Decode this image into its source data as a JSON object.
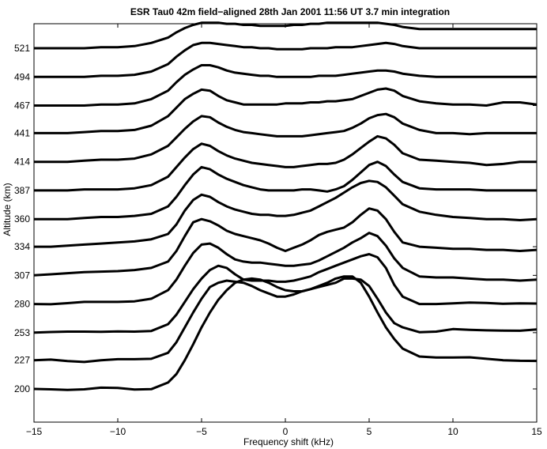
{
  "chart_data": {
    "type": "line",
    "title": "ESR Tau0 42m field−aligned 28th Jan 2001 11:56 UT 3.7 min integration",
    "xlabel": "Frequency shift (kHz)",
    "ylabel": "Altitude (km)",
    "xlim": [
      -15,
      15
    ],
    "xticks": [
      -15,
      -10,
      -5,
      0,
      5,
      10,
      15
    ],
    "xtick_labels": [
      "−15",
      "−10",
      "−5",
      "0",
      "5",
      "10",
      "15"
    ],
    "altitude_labels": [
      "200",
      "227",
      "253",
      "280",
      "307",
      "334",
      "360",
      "387",
      "414",
      "441",
      "467",
      "494",
      "521"
    ],
    "grid": false,
    "line_color": "#000000",
    "x": [
      -15,
      -14,
      -13,
      -12,
      -11,
      -10,
      -9,
      -8,
      -7,
      -6.5,
      -6,
      -5.5,
      -5,
      -4.5,
      -4,
      -3.5,
      -3,
      -2.5,
      -2,
      -1.5,
      -1,
      -0.5,
      0,
      0.5,
      1,
      1.5,
      2,
      2.5,
      3,
      3.5,
      4,
      4.5,
      5,
      5.5,
      6,
      6.5,
      7,
      8,
      9,
      10,
      11,
      12,
      13,
      14,
      15
    ],
    "series": [
      {
        "altitude": "200",
        "values": [
          200.0,
          199.6,
          199.0,
          199.6,
          201.2,
          201.0,
          199.4,
          199.8,
          206.0,
          214.0,
          227.0,
          242.0,
          258.0,
          272.0,
          284.0,
          293.0,
          300.0,
          303.0,
          304.0,
          303.0,
          300.0,
          296.0,
          293.0,
          292.0,
          292.0,
          294.0,
          297.0,
          300.0,
          304.0,
          306.0,
          306.0,
          300.0,
          287.0,
          272.0,
          258.0,
          247.0,
          238.0,
          230.5,
          229.6,
          229.6,
          229.8,
          228.4,
          227.0,
          226.5,
          226.4
        ]
      },
      {
        "altitude": "227",
        "values": [
          227.0,
          227.6,
          226.2,
          225.4,
          227.0,
          228.0,
          228.0,
          228.4,
          234.0,
          244.0,
          258.0,
          272.0,
          285.0,
          296.0,
          300.0,
          302.0,
          301.0,
          300.0,
          297.0,
          293.0,
          290.0,
          287.0,
          287.0,
          289.0,
          292.0,
          294.0,
          296.0,
          298.0,
          300.0,
          304.0,
          304.0,
          303.0,
          297.0,
          285.0,
          272.0,
          262.0,
          258.0,
          253.5,
          254.0,
          256.4,
          255.6,
          255.2,
          255.0,
          254.8,
          256.0
        ]
      },
      {
        "altitude": "253",
        "values": [
          253.0,
          253.6,
          254.0,
          254.0,
          253.8,
          254.2,
          254.0,
          254.6,
          261.0,
          270.0,
          282.0,
          294.0,
          304.0,
          312.0,
          316.0,
          314.0,
          308.0,
          303.0,
          302.0,
          302.0,
          302.0,
          301.0,
          301.0,
          302.0,
          304.0,
          306.0,
          310.0,
          313.0,
          316.0,
          319.0,
          322.0,
          325.0,
          327.0,
          324.0,
          314.0,
          298.0,
          287.0,
          280.0,
          280.0,
          280.6,
          281.4,
          281.0,
          280.2,
          280.6,
          280.4
        ]
      },
      {
        "altitude": "280",
        "values": [
          280.0,
          279.8,
          280.8,
          282.0,
          282.0,
          282.0,
          282.5,
          285.0,
          293.0,
          303.0,
          316.0,
          328.0,
          336.0,
          337.0,
          333.0,
          327.0,
          322.0,
          320.0,
          319.0,
          319.0,
          318.0,
          317.0,
          316.0,
          316.0,
          317.0,
          318.0,
          321.0,
          325.0,
          329.0,
          333.0,
          338.0,
          342.0,
          347.0,
          344.0,
          335.0,
          323.0,
          314.0,
          306.0,
          305.0,
          305.0,
          304.0,
          303.0,
          303.0,
          302.0,
          303.0
        ]
      },
      {
        "altitude": "307",
        "values": [
          307.0,
          308.0,
          309.0,
          310.0,
          310.5,
          311.0,
          312.0,
          314.0,
          320.0,
          330.0,
          344.0,
          357.0,
          360.0,
          358.0,
          354.0,
          349.0,
          346.0,
          344.0,
          342.0,
          340.0,
          337.0,
          333.0,
          330.0,
          333.0,
          336.0,
          340.0,
          345.0,
          348.0,
          350.0,
          352.0,
          357.0,
          364.0,
          370.0,
          368.0,
          360.0,
          348.0,
          338.0,
          334.0,
          333.0,
          332.0,
          332.0,
          331.0,
          331.0,
          330.0,
          331.0
        ]
      },
      {
        "altitude": "334",
        "values": [
          334.0,
          334.0,
          335.0,
          336.0,
          337.0,
          338.0,
          339.0,
          341.0,
          346.0,
          355.0,
          368.0,
          378.0,
          383.0,
          381.0,
          376.0,
          372.0,
          369.0,
          367.0,
          365.0,
          364.0,
          364.0,
          363.0,
          363.0,
          364.0,
          366.0,
          368.0,
          372.0,
          376.0,
          380.0,
          385.0,
          390.0,
          394.0,
          396.0,
          395.0,
          390.0,
          382.0,
          374.0,
          367.0,
          364.0,
          362.0,
          361.0,
          360.0,
          360.0,
          359.0,
          360.0
        ]
      },
      {
        "altitude": "360",
        "values": [
          360.0,
          360.0,
          360.0,
          361.0,
          362.0,
          362.0,
          363.0,
          365.0,
          372.0,
          381.0,
          392.0,
          402.0,
          409.0,
          407.0,
          402.0,
          398.0,
          395.0,
          392.0,
          390.0,
          388.0,
          387.0,
          387.0,
          387.0,
          387.0,
          388.0,
          388.0,
          387.0,
          386.0,
          388.0,
          391.0,
          397.0,
          404.0,
          411.0,
          414.0,
          410.0,
          402.0,
          395.0,
          389.0,
          388.0,
          388.0,
          388.0,
          387.0,
          387.0,
          387.0,
          387.0
        ]
      },
      {
        "altitude": "387",
        "values": [
          387.0,
          387.0,
          387.0,
          388.0,
          388.0,
          388.0,
          389.0,
          392.0,
          400.0,
          409.0,
          418.0,
          426.0,
          431.0,
          429.0,
          424.0,
          420.0,
          417.0,
          415.0,
          413.0,
          412.0,
          411.0,
          410.0,
          409.0,
          409.0,
          410.0,
          411.0,
          412.0,
          412.0,
          413.0,
          416.0,
          421.0,
          427.0,
          433.0,
          438.0,
          436.0,
          430.0,
          422.0,
          416.0,
          415.0,
          414.0,
          413.0,
          411.0,
          412.0,
          414.0,
          414.0
        ]
      },
      {
        "altitude": "414",
        "values": [
          414.0,
          414.0,
          414.0,
          415.0,
          416.0,
          416.0,
          417.0,
          421.0,
          429.0,
          437.0,
          445.0,
          452.0,
          457.0,
          456.0,
          451.0,
          447.0,
          444.0,
          442.0,
          441.0,
          440.0,
          439.0,
          438.0,
          438.0,
          438.0,
          438.0,
          439.0,
          440.0,
          441.0,
          442.0,
          443.0,
          446.0,
          450.0,
          455.0,
          458.0,
          459.0,
          456.0,
          450.0,
          444.0,
          441.0,
          441.0,
          440.0,
          441.0,
          441.0,
          441.0,
          441.0
        ]
      },
      {
        "altitude": "441",
        "values": [
          441.0,
          441.0,
          441.0,
          442.0,
          443.0,
          443.0,
          444.0,
          448.0,
          457.0,
          465.0,
          473.0,
          478.0,
          482.0,
          481.0,
          476.0,
          472.0,
          470.0,
          468.0,
          468.0,
          468.0,
          468.0,
          468.0,
          469.0,
          469.0,
          469.0,
          470.0,
          470.0,
          471.0,
          471.0,
          472.0,
          473.0,
          476.0,
          479.0,
          482.0,
          483.0,
          481.0,
          476.0,
          471.0,
          469.0,
          468.0,
          468.0,
          467.0,
          470.0,
          470.0,
          468.0
        ]
      },
      {
        "altitude": "467",
        "values": [
          467.0,
          467.0,
          467.0,
          467.0,
          468.0,
          468.0,
          469.0,
          473.0,
          481.0,
          489.0,
          496.0,
          501.0,
          505.0,
          505.0,
          503.0,
          500.0,
          498.0,
          497.0,
          496.0,
          495.0,
          495.0,
          494.0,
          494.0,
          494.0,
          494.0,
          494.0,
          495.0,
          495.0,
          495.0,
          496.0,
          497.0,
          498.0,
          499.0,
          500.0,
          500.0,
          499.0,
          497.0,
          495.0,
          494.0,
          494.0,
          494.0,
          494.0,
          494.0,
          494.0,
          494.0
        ]
      },
      {
        "altitude": "494",
        "values": [
          494.0,
          494.0,
          494.0,
          494.0,
          495.0,
          495.0,
          496.0,
          499.0,
          506.0,
          513.0,
          519.0,
          524.0,
          526.0,
          526.0,
          525.0,
          524.0,
          523.0,
          522.0,
          522.0,
          521.0,
          521.0,
          520.0,
          520.0,
          520.0,
          520.0,
          521.0,
          521.0,
          521.0,
          522.0,
          522.0,
          522.0,
          523.0,
          524.0,
          525.0,
          526.0,
          525.0,
          523.0,
          521.0,
          521.0,
          521.0,
          521.0,
          521.0,
          521.0,
          521.0,
          521.0
        ]
      },
      {
        "altitude": "521",
        "values": [
          521.0,
          521.0,
          521.0,
          521.0,
          522.0,
          522.0,
          523.0,
          526.0,
          531.0,
          536.0,
          540.0,
          543.0,
          545.0,
          545.0,
          545.0,
          544.0,
          544.0,
          543.0,
          543.0,
          542.0,
          542.0,
          542.0,
          542.0,
          543.0,
          543.0,
          544.0,
          544.0,
          545.0,
          545.0,
          545.0,
          545.0,
          545.0,
          545.0,
          545.0,
          544.0,
          543.0,
          541.0,
          539.0,
          539.0,
          539.0,
          539.0,
          539.0,
          539.0,
          539.0,
          539.0
        ]
      }
    ]
  }
}
